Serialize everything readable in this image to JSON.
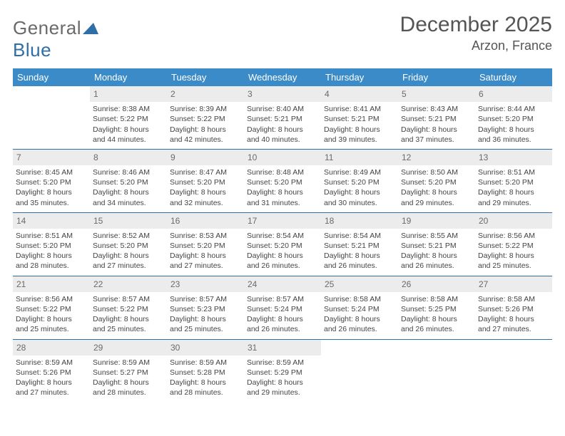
{
  "logo": {
    "primary": "General",
    "secondary": "Blue",
    "color_primary": "#6a6a6a",
    "color_secondary": "#2f6ea6",
    "triangle_color": "#2f6ea6"
  },
  "title": "December 2025",
  "location": "Arzon, France",
  "colors": {
    "header_bg": "#3b8bc9",
    "header_text": "#ffffff",
    "daynum_bg": "#ececec",
    "daynum_text": "#6a6a6a",
    "rule": "#2f6ea6",
    "body_text": "#444444"
  },
  "dow": [
    "Sunday",
    "Monday",
    "Tuesday",
    "Wednesday",
    "Thursday",
    "Friday",
    "Saturday"
  ],
  "weeks": [
    [
      {
        "n": "",
        "lines": [
          "",
          "",
          "",
          ""
        ]
      },
      {
        "n": "1",
        "lines": [
          "Sunrise: 8:38 AM",
          "Sunset: 5:22 PM",
          "Daylight: 8 hours",
          "and 44 minutes."
        ]
      },
      {
        "n": "2",
        "lines": [
          "Sunrise: 8:39 AM",
          "Sunset: 5:22 PM",
          "Daylight: 8 hours",
          "and 42 minutes."
        ]
      },
      {
        "n": "3",
        "lines": [
          "Sunrise: 8:40 AM",
          "Sunset: 5:21 PM",
          "Daylight: 8 hours",
          "and 40 minutes."
        ]
      },
      {
        "n": "4",
        "lines": [
          "Sunrise: 8:41 AM",
          "Sunset: 5:21 PM",
          "Daylight: 8 hours",
          "and 39 minutes."
        ]
      },
      {
        "n": "5",
        "lines": [
          "Sunrise: 8:43 AM",
          "Sunset: 5:21 PM",
          "Daylight: 8 hours",
          "and 37 minutes."
        ]
      },
      {
        "n": "6",
        "lines": [
          "Sunrise: 8:44 AM",
          "Sunset: 5:20 PM",
          "Daylight: 8 hours",
          "and 36 minutes."
        ]
      }
    ],
    [
      {
        "n": "7",
        "lines": [
          "Sunrise: 8:45 AM",
          "Sunset: 5:20 PM",
          "Daylight: 8 hours",
          "and 35 minutes."
        ]
      },
      {
        "n": "8",
        "lines": [
          "Sunrise: 8:46 AM",
          "Sunset: 5:20 PM",
          "Daylight: 8 hours",
          "and 34 minutes."
        ]
      },
      {
        "n": "9",
        "lines": [
          "Sunrise: 8:47 AM",
          "Sunset: 5:20 PM",
          "Daylight: 8 hours",
          "and 32 minutes."
        ]
      },
      {
        "n": "10",
        "lines": [
          "Sunrise: 8:48 AM",
          "Sunset: 5:20 PM",
          "Daylight: 8 hours",
          "and 31 minutes."
        ]
      },
      {
        "n": "11",
        "lines": [
          "Sunrise: 8:49 AM",
          "Sunset: 5:20 PM",
          "Daylight: 8 hours",
          "and 30 minutes."
        ]
      },
      {
        "n": "12",
        "lines": [
          "Sunrise: 8:50 AM",
          "Sunset: 5:20 PM",
          "Daylight: 8 hours",
          "and 29 minutes."
        ]
      },
      {
        "n": "13",
        "lines": [
          "Sunrise: 8:51 AM",
          "Sunset: 5:20 PM",
          "Daylight: 8 hours",
          "and 29 minutes."
        ]
      }
    ],
    [
      {
        "n": "14",
        "lines": [
          "Sunrise: 8:51 AM",
          "Sunset: 5:20 PM",
          "Daylight: 8 hours",
          "and 28 minutes."
        ]
      },
      {
        "n": "15",
        "lines": [
          "Sunrise: 8:52 AM",
          "Sunset: 5:20 PM",
          "Daylight: 8 hours",
          "and 27 minutes."
        ]
      },
      {
        "n": "16",
        "lines": [
          "Sunrise: 8:53 AM",
          "Sunset: 5:20 PM",
          "Daylight: 8 hours",
          "and 27 minutes."
        ]
      },
      {
        "n": "17",
        "lines": [
          "Sunrise: 8:54 AM",
          "Sunset: 5:20 PM",
          "Daylight: 8 hours",
          "and 26 minutes."
        ]
      },
      {
        "n": "18",
        "lines": [
          "Sunrise: 8:54 AM",
          "Sunset: 5:21 PM",
          "Daylight: 8 hours",
          "and 26 minutes."
        ]
      },
      {
        "n": "19",
        "lines": [
          "Sunrise: 8:55 AM",
          "Sunset: 5:21 PM",
          "Daylight: 8 hours",
          "and 26 minutes."
        ]
      },
      {
        "n": "20",
        "lines": [
          "Sunrise: 8:56 AM",
          "Sunset: 5:22 PM",
          "Daylight: 8 hours",
          "and 25 minutes."
        ]
      }
    ],
    [
      {
        "n": "21",
        "lines": [
          "Sunrise: 8:56 AM",
          "Sunset: 5:22 PM",
          "Daylight: 8 hours",
          "and 25 minutes."
        ]
      },
      {
        "n": "22",
        "lines": [
          "Sunrise: 8:57 AM",
          "Sunset: 5:22 PM",
          "Daylight: 8 hours",
          "and 25 minutes."
        ]
      },
      {
        "n": "23",
        "lines": [
          "Sunrise: 8:57 AM",
          "Sunset: 5:23 PM",
          "Daylight: 8 hours",
          "and 25 minutes."
        ]
      },
      {
        "n": "24",
        "lines": [
          "Sunrise: 8:57 AM",
          "Sunset: 5:24 PM",
          "Daylight: 8 hours",
          "and 26 minutes."
        ]
      },
      {
        "n": "25",
        "lines": [
          "Sunrise: 8:58 AM",
          "Sunset: 5:24 PM",
          "Daylight: 8 hours",
          "and 26 minutes."
        ]
      },
      {
        "n": "26",
        "lines": [
          "Sunrise: 8:58 AM",
          "Sunset: 5:25 PM",
          "Daylight: 8 hours",
          "and 26 minutes."
        ]
      },
      {
        "n": "27",
        "lines": [
          "Sunrise: 8:58 AM",
          "Sunset: 5:26 PM",
          "Daylight: 8 hours",
          "and 27 minutes."
        ]
      }
    ],
    [
      {
        "n": "28",
        "lines": [
          "Sunrise: 8:59 AM",
          "Sunset: 5:26 PM",
          "Daylight: 8 hours",
          "and 27 minutes."
        ]
      },
      {
        "n": "29",
        "lines": [
          "Sunrise: 8:59 AM",
          "Sunset: 5:27 PM",
          "Daylight: 8 hours",
          "and 28 minutes."
        ]
      },
      {
        "n": "30",
        "lines": [
          "Sunrise: 8:59 AM",
          "Sunset: 5:28 PM",
          "Daylight: 8 hours",
          "and 28 minutes."
        ]
      },
      {
        "n": "31",
        "lines": [
          "Sunrise: 8:59 AM",
          "Sunset: 5:29 PM",
          "Daylight: 8 hours",
          "and 29 minutes."
        ]
      },
      {
        "n": "",
        "lines": [
          "",
          "",
          "",
          ""
        ]
      },
      {
        "n": "",
        "lines": [
          "",
          "",
          "",
          ""
        ]
      },
      {
        "n": "",
        "lines": [
          "",
          "",
          "",
          ""
        ]
      }
    ]
  ]
}
